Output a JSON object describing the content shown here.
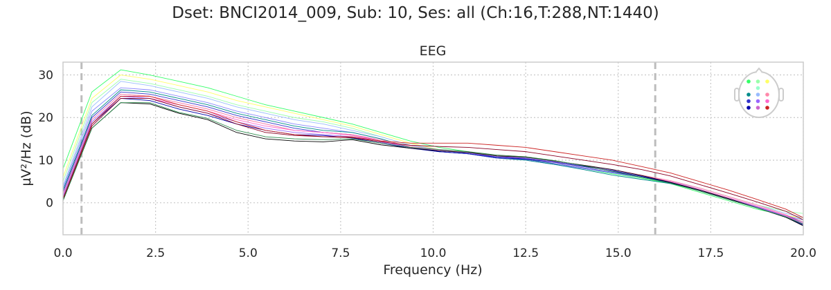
{
  "suptitle": "Dset: BNCI2014_009, Sub: 10, Ses: all (Ch:16,T:288,NT:1440)",
  "chart_data": {
    "type": "line",
    "title": "EEG",
    "xlabel": "Frequency (Hz)",
    "ylabel": "µV²/Hz (dB)",
    "xlim": [
      0,
      20
    ],
    "ylim": [
      -7.5,
      33
    ],
    "xticks": [
      "0.0",
      "2.5",
      "5.0",
      "7.5",
      "10.0",
      "12.5",
      "15.0",
      "17.5",
      "20.0"
    ],
    "yticks": [
      "0",
      "10",
      "20",
      "30"
    ],
    "grid": true,
    "vlines": [
      0.5,
      16.0
    ],
    "x": [
      0.0,
      0.78,
      1.56,
      2.34,
      3.13,
      3.91,
      4.69,
      5.47,
      6.25,
      7.03,
      7.81,
      8.59,
      9.38,
      10.16,
      10.94,
      11.72,
      12.5,
      13.28,
      14.06,
      14.84,
      15.63,
      16.41,
      17.19,
      17.97,
      18.75,
      19.53,
      20.0
    ],
    "series": [
      {
        "color": "#33ff66",
        "values": [
          8,
          26,
          31.2,
          30,
          28.5,
          27,
          25,
          23,
          21.5,
          20,
          18.5,
          16.5,
          14.5,
          13,
          12,
          11,
          10.5,
          9,
          8,
          6.8,
          5.8,
          4.5,
          2.5,
          0.5,
          -1.5,
          -3,
          -4
        ]
      },
      {
        "color": "#ffff66",
        "values": [
          6,
          24.5,
          30,
          29,
          27.5,
          26,
          24,
          22.5,
          21,
          19.5,
          18,
          16,
          14,
          12.5,
          11.5,
          10.5,
          10,
          9,
          8,
          7,
          6,
          4.8,
          3,
          1,
          -1,
          -3,
          -3.5
        ]
      },
      {
        "color": "#99ffaa",
        "values": [
          5,
          23.5,
          29,
          28,
          26.5,
          25,
          23,
          21.5,
          20,
          19,
          17.5,
          15.5,
          13.5,
          12.5,
          11.5,
          10.5,
          10,
          9,
          8,
          7,
          6,
          5,
          3.5,
          1.5,
          -0.5,
          -2,
          -2.5
        ]
      },
      {
        "color": "#99bbff",
        "values": [
          4,
          22.5,
          28.5,
          27.5,
          26,
          24.5,
          22.5,
          21,
          19.5,
          18.5,
          17,
          15.5,
          13.5,
          12.5,
          11.5,
          10.5,
          10,
          9,
          8,
          7,
          6,
          5,
          3.5,
          1.5,
          -0.5,
          -2.5,
          -3.5
        ]
      },
      {
        "color": "#8888ff",
        "values": [
          3.5,
          21.5,
          27,
          26.5,
          25,
          23.5,
          21.5,
          20,
          18.5,
          17.5,
          16.5,
          15,
          13,
          12,
          11.5,
          10.5,
          10,
          9,
          8,
          7,
          6,
          4.8,
          3,
          1,
          -1,
          -3,
          -4
        ]
      },
      {
        "color": "#008b8b",
        "values": [
          3,
          20.5,
          26.5,
          26,
          24.5,
          23,
          21,
          19.5,
          18,
          17,
          16.5,
          15,
          13,
          12,
          11.5,
          10.5,
          10,
          9,
          7.8,
          6.5,
          5.5,
          4.5,
          3,
          1,
          -1,
          -3,
          -4.5
        ]
      },
      {
        "color": "#3333cc",
        "values": [
          2.5,
          20,
          26,
          25.5,
          24,
          22.5,
          20.5,
          19,
          17.5,
          16.5,
          16,
          14.5,
          13,
          12,
          11.5,
          10.5,
          10.2,
          9.2,
          8.2,
          7.2,
          6,
          4.8,
          3,
          1,
          -1,
          -3,
          -4.5
        ]
      },
      {
        "color": "#cc66cc",
        "values": [
          2,
          19.5,
          25.5,
          25,
          23.5,
          22,
          20,
          18.5,
          17,
          16.5,
          16,
          14.5,
          13,
          12.2,
          11.8,
          11,
          10.5,
          9.5,
          8.5,
          7.5,
          6.2,
          5,
          3.2,
          1.2,
          -0.8,
          -3,
          -4.8
        ]
      },
      {
        "color": "#ff88aa",
        "values": [
          2,
          19.5,
          25.5,
          25,
          23.5,
          22,
          20,
          18.5,
          17,
          16.5,
          16,
          14.8,
          13.2,
          12.5,
          12,
          11.2,
          10.8,
          9.8,
          8.8,
          7.8,
          6.5,
          5.2,
          3.5,
          1.5,
          -0.5,
          -2.8,
          -4.5
        ]
      },
      {
        "color": "#ff66cc",
        "values": [
          1.5,
          19,
          25,
          24.5,
          23,
          21.5,
          19.5,
          18,
          17,
          16.5,
          15.8,
          14.5,
          13,
          12.3,
          11.8,
          11,
          10.8,
          9.8,
          8.8,
          7.8,
          6.4,
          5,
          3.2,
          1.2,
          -0.8,
          -3,
          -5
        ]
      },
      {
        "color": "#9966ff",
        "values": [
          1.5,
          19,
          25,
          24.5,
          22.5,
          21,
          19,
          17.5,
          16.5,
          16,
          15.5,
          14.2,
          13,
          12.2,
          11.7,
          10.8,
          10.5,
          9.6,
          8.6,
          7.6,
          6.2,
          4.8,
          3,
          1,
          -1,
          -3.2,
          -5
        ]
      },
      {
        "color": "#0000aa",
        "values": [
          1,
          18.5,
          24.5,
          24,
          22,
          20.5,
          18.5,
          17,
          16,
          15.8,
          15.2,
          14,
          12.8,
          12,
          11.5,
          10.7,
          10.3,
          9.5,
          8.5,
          7.5,
          6.2,
          4.7,
          2.8,
          0.8,
          -1.2,
          -3.4,
          -5.2
        ]
      },
      {
        "color": "#cc2222",
        "values": [
          1,
          18.5,
          25,
          25,
          23,
          21.5,
          19,
          17,
          16,
          15.5,
          15.5,
          14.5,
          14,
          14,
          14,
          13.5,
          13,
          12,
          11,
          10,
          8.5,
          7,
          5,
          3,
          0.8,
          -1.5,
          -3.5
        ]
      },
      {
        "color": "#880022",
        "values": [
          0.8,
          18,
          24.5,
          24.5,
          22.5,
          21,
          18.5,
          16.5,
          15.8,
          15.5,
          15.3,
          14.3,
          13.5,
          13.2,
          13,
          12.5,
          12,
          11,
          10,
          9,
          7.8,
          6.3,
          4.3,
          2.3,
          0.2,
          -2,
          -4
        ]
      },
      {
        "color": "#000000",
        "values": [
          0.5,
          17.5,
          23.5,
          23.2,
          21,
          19.5,
          16.5,
          15,
          14.5,
          14.3,
          14.8,
          13.6,
          12.8,
          12.2,
          11.8,
          11,
          10.7,
          9.8,
          8.8,
          7.8,
          6.4,
          4.8,
          3,
          1,
          -1.2,
          -3.4,
          -5.4
        ]
      },
      {
        "color": "#2a8a4a",
        "values": [
          0.5,
          17.5,
          23.5,
          23.5,
          21.2,
          19.8,
          17,
          15.5,
          15,
          14.8,
          15,
          14,
          13,
          12.5,
          12,
          11.2,
          10.8,
          9.9,
          8.7,
          7.4,
          6,
          4.6,
          2.8,
          0.8,
          -1.2,
          -3.3,
          -5
        ]
      }
    ]
  },
  "sensor_inset": {
    "dots": [
      {
        "color": "#33ff66"
      },
      {
        "color": "#99ffaa"
      },
      {
        "color": "#ffff66"
      },
      {
        "color": "#99ffcc"
      },
      {
        "color": "#008b8b"
      },
      {
        "color": "#99bbff"
      },
      {
        "color": "#ff88aa"
      },
      {
        "color": "#3333cc"
      },
      {
        "color": "#9966ff"
      },
      {
        "color": "#ff66cc"
      },
      {
        "color": "#0000aa"
      },
      {
        "color": "#cc66cc"
      },
      {
        "color": "#cc2222"
      },
      {
        "color": "#000000"
      },
      {
        "color": "#880022"
      },
      {
        "color": "#ee2222"
      }
    ]
  }
}
